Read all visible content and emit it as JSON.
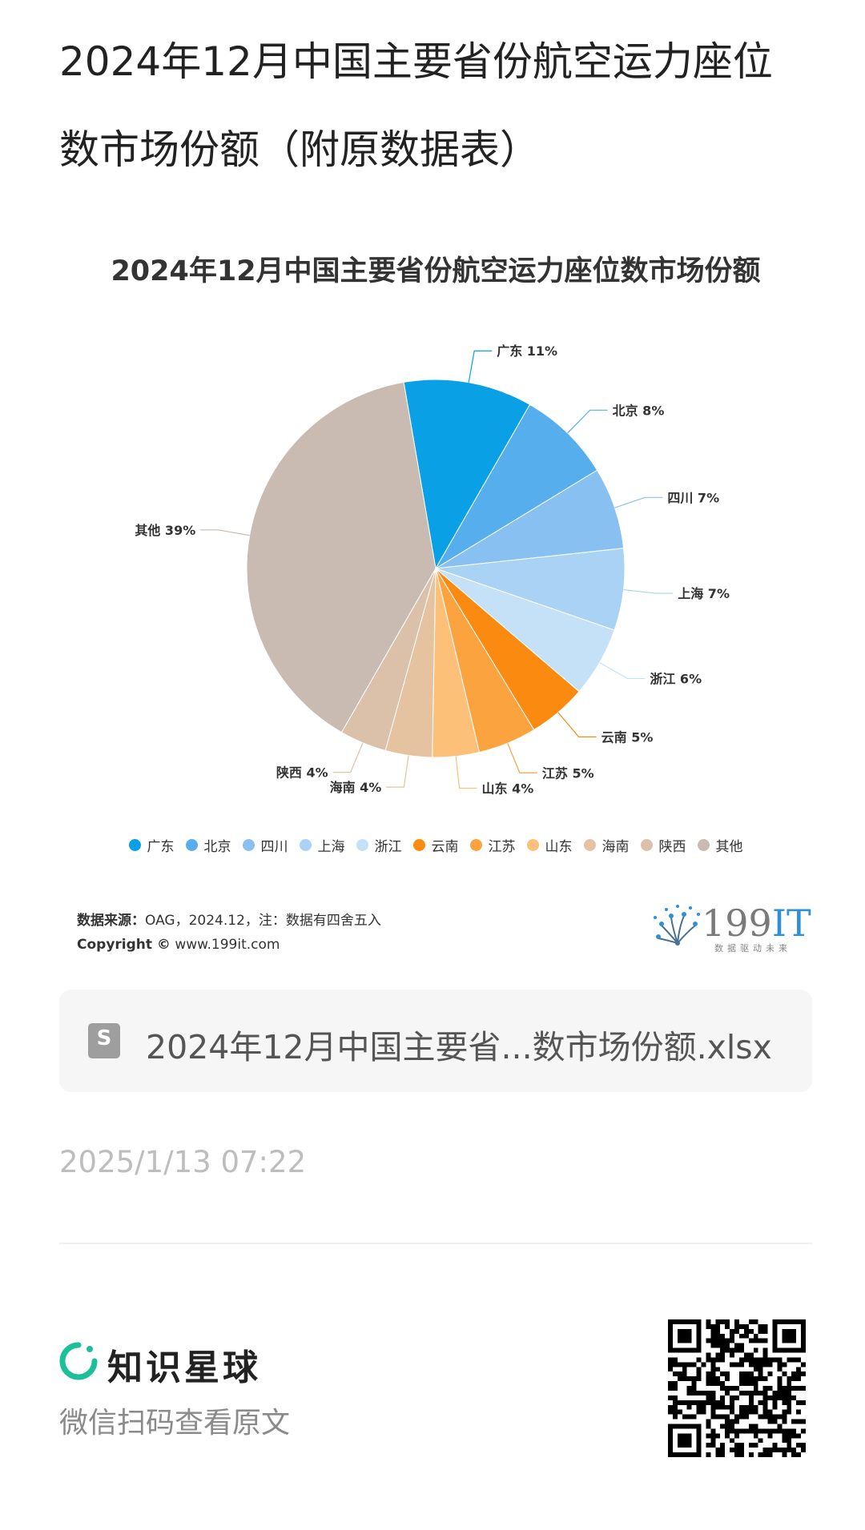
{
  "page": {
    "title": "2024年12月中国主要省份航空运力座位数市场份额（附原数据表）"
  },
  "chart_data": {
    "type": "pie",
    "title": "2024年12月中国主要省份航空运力座位数市场份额",
    "slices": [
      {
        "label": "广东",
        "value": 11,
        "display": "广东 11%",
        "color": "#0aa0e6"
      },
      {
        "label": "北京",
        "value": 8,
        "display": "北京 8%",
        "color": "#56afec"
      },
      {
        "label": "四川",
        "value": 7,
        "display": "四川 7%",
        "color": "#88c1f1"
      },
      {
        "label": "上海",
        "value": 7,
        "display": "上海 7%",
        "color": "#a9d2f5"
      },
      {
        "label": "浙江",
        "value": 6,
        "display": "浙江 6%",
        "color": "#c5e1f8"
      },
      {
        "label": "云南",
        "value": 5,
        "display": "云南 5%",
        "color": "#fa8a10"
      },
      {
        "label": "江苏",
        "value": 5,
        "display": "江苏 5%",
        "color": "#fba33e"
      },
      {
        "label": "山东",
        "value": 4,
        "display": "山东 4%",
        "color": "#fcc079"
      },
      {
        "label": "海南",
        "value": 4,
        "display": "海南 4%",
        "color": "#e5c2a0"
      },
      {
        "label": "陕西",
        "value": 4,
        "display": "陕西 4%",
        "color": "#dbc1aa"
      },
      {
        "label": "其他",
        "value": 39,
        "display": "其他 39%",
        "color": "#c9bbb1"
      }
    ],
    "legend_position": "bottom"
  },
  "source": {
    "label": "数据来源：",
    "text": "OAG，2024.12，注：数据有四舍五入",
    "copyright_label": "Copyright ©",
    "copyright_url": "www.199it.com"
  },
  "brand": {
    "name_prefix": "199",
    "name_suffix": "IT",
    "slogan": "数据驱动未来"
  },
  "file": {
    "name": "2024年12月中国主要省...数市场份额.xlsx",
    "icon": "spreadsheet-icon",
    "icon_glyph": "S"
  },
  "post": {
    "timestamp": "2025/1/13 07:22"
  },
  "footer": {
    "app_name": "知识星球",
    "hint": "微信扫码查看原文",
    "qr_icon": "qr-code-icon"
  }
}
